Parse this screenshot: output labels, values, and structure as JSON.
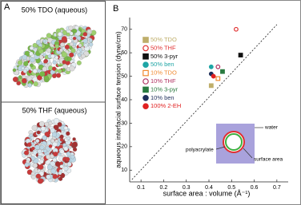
{
  "panel_a": {
    "label": "A",
    "top_caption": "50% TDO (aqueous)",
    "bottom_caption": "50% THF (aqueous)"
  },
  "chart_data": {
    "type": "scatter",
    "panel_label": "B",
    "x_label": "surface area : volume (Å⁻¹)",
    "y_label": "aqueous interfacial surface tension (dyne/cm)",
    "xlim": [
      0.05,
      0.75
    ],
    "ylim": [
      5,
      75
    ],
    "xticks": [
      0.1,
      0.2,
      0.3,
      0.4,
      0.5,
      0.6,
      0.7
    ],
    "yticks": [
      10,
      20,
      30,
      40,
      50,
      60,
      70
    ],
    "trend_line": {
      "x": [
        0.06,
        0.7
      ],
      "y": [
        6,
        72
      ]
    },
    "series": [
      {
        "name": "50% TDO",
        "color": "#bfae6a",
        "marker": "square",
        "filled": true,
        "x": [
          0.41
        ],
        "y": [
          46
        ]
      },
      {
        "name": "50% THF",
        "color": "#e03030",
        "marker": "circle",
        "filled": false,
        "x": [
          0.52
        ],
        "y": [
          70
        ]
      },
      {
        "name": "50% 3-pyr",
        "color": "#111111",
        "marker": "square",
        "filled": true,
        "x": [
          0.54
        ],
        "y": [
          59
        ]
      },
      {
        "name": "50% ben",
        "color": "#1ea5a5",
        "marker": "circle",
        "filled": true,
        "x": [
          0.41
        ],
        "y": [
          54
        ]
      },
      {
        "name": "10% TDO",
        "color": "#f08a30",
        "marker": "square",
        "filled": false,
        "x": [
          0.44
        ],
        "y": [
          49
        ]
      },
      {
        "name": "10% THF",
        "color": "#b03060",
        "marker": "circle",
        "filled": false,
        "x": [
          0.44
        ],
        "y": [
          54
        ]
      },
      {
        "name": "10% 3-pyr",
        "color": "#2a7a40",
        "marker": "square",
        "filled": true,
        "x": [
          0.46
        ],
        "y": [
          52
        ]
      },
      {
        "name": "10% ben",
        "color": "#1e2e5a",
        "marker": "circle",
        "filled": true,
        "x": [
          0.41
        ],
        "y": [
          51
        ]
      },
      {
        "name": "100% 2-EH",
        "color": "#e02020",
        "marker": "circle",
        "filled": true,
        "x": [
          0.42
        ],
        "y": [
          50
        ]
      }
    ],
    "inset": {
      "water": "water",
      "polyacrylate": "polyacrylate",
      "surface_area": "surface area"
    }
  }
}
